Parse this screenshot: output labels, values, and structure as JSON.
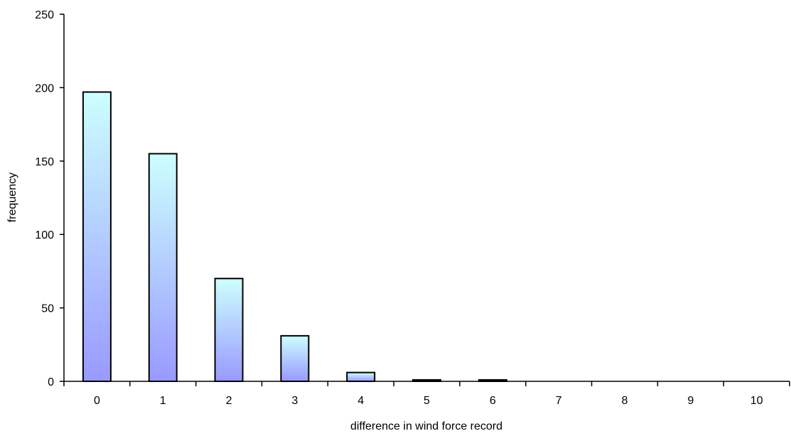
{
  "chart_data": {
    "type": "bar",
    "categories": [
      "0",
      "1",
      "2",
      "3",
      "4",
      "5",
      "6",
      "7",
      "8",
      "9",
      "10"
    ],
    "values": [
      197,
      155,
      70,
      31,
      6,
      1,
      1,
      0,
      0,
      0,
      0
    ],
    "title": "",
    "xlabel": "difference in wind force record",
    "ylabel": "frequency",
    "ylim": [
      0,
      250
    ],
    "yticks": [
      0,
      50,
      100,
      150,
      200,
      250
    ],
    "grid": false,
    "legend": "none",
    "colors": {
      "bar_top": "#ccffff",
      "bar_bottom": "#9999ff",
      "bar_outline": "#000000"
    }
  }
}
